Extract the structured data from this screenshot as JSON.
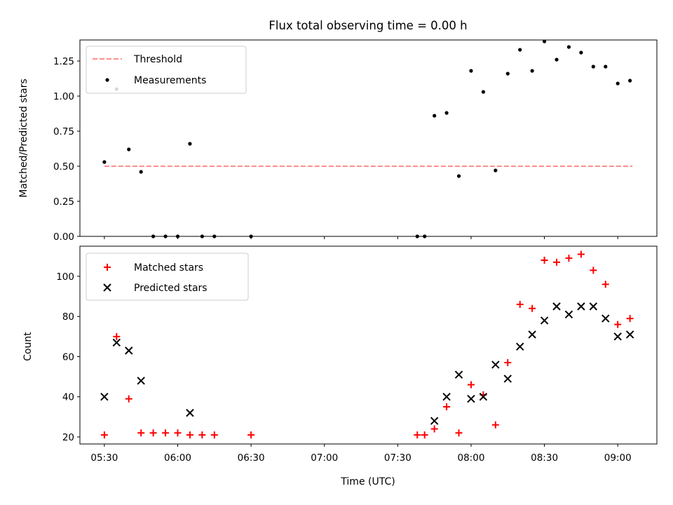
{
  "title": "Flux total observing time = 0.00 h",
  "colors": {
    "threshold": "#ff7f7f",
    "measurements": "#000000",
    "matched": "#ff0000",
    "predicted": "#000000"
  },
  "chart_data": [
    {
      "type": "scatter",
      "panel": "top",
      "ylabel": "Matched/Predicted stars",
      "xlim": [
        "05:20",
        "09:16"
      ],
      "ylim": [
        0,
        1.4
      ],
      "yticks": [
        "0.00",
        "0.25",
        "0.50",
        "0.75",
        "1.00",
        "1.25"
      ],
      "ytick_values": [
        0,
        0.25,
        0.5,
        0.75,
        1.0,
        1.25
      ],
      "legend": {
        "placement": "top-left",
        "entries": [
          "Threshold",
          "Measurements"
        ]
      },
      "threshold": {
        "name": "Threshold",
        "value": 0.5,
        "x_start": "05:30",
        "x_end": "09:06"
      },
      "series": [
        {
          "name": "Measurements",
          "x": [
            "05:30",
            "05:35",
            "05:40",
            "05:45",
            "05:50",
            "05:55",
            "06:00",
            "06:05",
            "06:10",
            "06:15",
            "06:30",
            "07:38",
            "07:41",
            "07:45",
            "07:50",
            "07:55",
            "08:00",
            "08:05",
            "08:10",
            "08:15",
            "08:20",
            "08:25",
            "08:30",
            "08:35",
            "08:40",
            "08:45",
            "08:50",
            "08:55",
            "09:00",
            "09:05"
          ],
          "y": [
            0.53,
            1.05,
            0.62,
            0.46,
            0.0,
            0.0,
            0.0,
            0.66,
            0.0,
            0.0,
            0.0,
            0.0,
            0.0,
            0.86,
            0.88,
            0.43,
            1.18,
            1.03,
            0.47,
            1.16,
            1.33,
            1.18,
            1.39,
            1.26,
            1.35,
            1.31,
            1.21,
            1.21,
            1.09,
            1.11
          ]
        }
      ]
    },
    {
      "type": "scatter",
      "panel": "bottom",
      "xlabel": "Time (UTC)",
      "ylabel": "Count",
      "xlim": [
        "05:20",
        "09:16"
      ],
      "ylim": [
        16.5,
        115
      ],
      "xticks": [
        "05:30",
        "06:00",
        "06:30",
        "07:00",
        "07:30",
        "08:00",
        "08:30",
        "09:00"
      ],
      "yticks": [
        "20",
        "40",
        "60",
        "80",
        "100"
      ],
      "ytick_values": [
        20,
        40,
        60,
        80,
        100
      ],
      "legend": {
        "placement": "top-left",
        "entries": [
          "Matched stars",
          "Predicted stars"
        ]
      },
      "series": [
        {
          "name": "Matched stars",
          "x": [
            "05:30",
            "05:35",
            "05:40",
            "05:45",
            "05:50",
            "05:55",
            "06:00",
            "06:05",
            "06:10",
            "06:15",
            "06:30",
            "07:38",
            "07:41",
            "07:45",
            "07:50",
            "07:55",
            "08:00",
            "08:05",
            "08:10",
            "08:15",
            "08:20",
            "08:25",
            "08:30",
            "08:35",
            "08:40",
            "08:45",
            "08:50",
            "08:55",
            "09:00",
            "09:05"
          ],
          "y": [
            21,
            70,
            39,
            22,
            22,
            22,
            22,
            21,
            21,
            21,
            21,
            21,
            21,
            24,
            35,
            22,
            46,
            41,
            26,
            57,
            86,
            84,
            108,
            107,
            109,
            111,
            103,
            96,
            76,
            79
          ]
        },
        {
          "name": "Predicted stars",
          "x": [
            "05:30",
            "05:35",
            "05:40",
            "05:45",
            "06:05",
            "07:45",
            "07:50",
            "07:55",
            "08:00",
            "08:05",
            "08:10",
            "08:15",
            "08:20",
            "08:25",
            "08:30",
            "08:35",
            "08:40",
            "08:45",
            "08:50",
            "08:55",
            "09:00",
            "09:05"
          ],
          "y": [
            40,
            67,
            63,
            48,
            32,
            28,
            40,
            51,
            39,
            40,
            56,
            49,
            65,
            71,
            78,
            85,
            81,
            85,
            85,
            79,
            70,
            71
          ]
        }
      ]
    }
  ]
}
